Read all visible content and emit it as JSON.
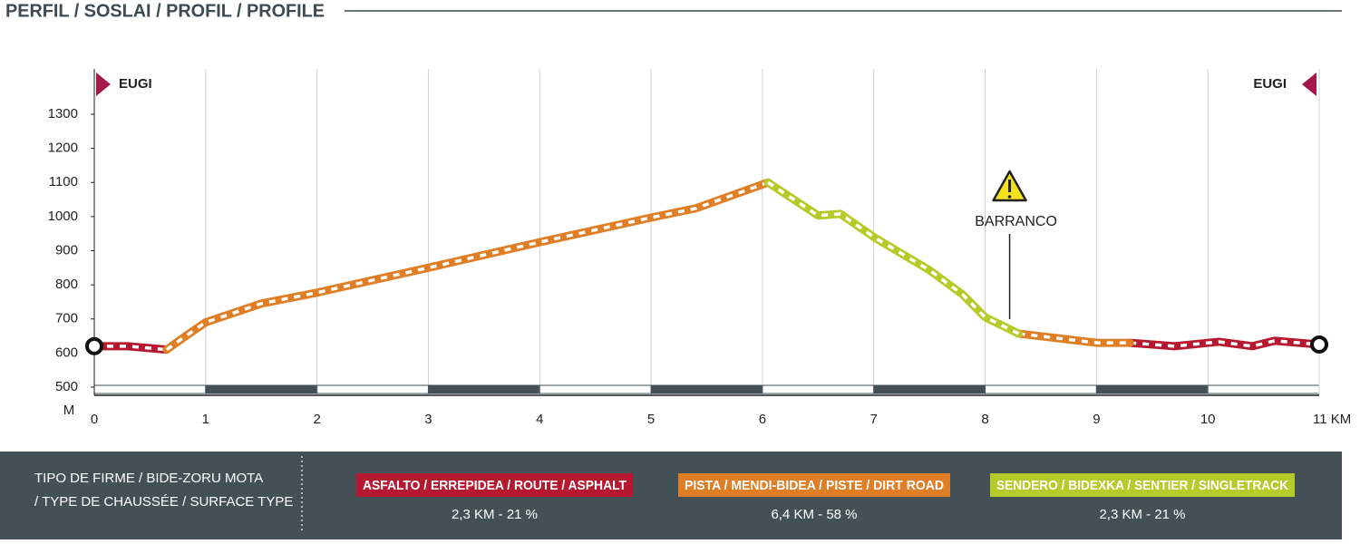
{
  "chart_data": {
    "type": "line",
    "title": "PERFIL / SOSLAI / PROFIL / PROFILE",
    "y_label": "M",
    "start_label": "EUGI",
    "end_label": "EUGI",
    "annotations": [
      {
        "text": "BARRANCO",
        "x": 8.22
      }
    ],
    "x": [
      0,
      0.3,
      0.65,
      0.8,
      1,
      1.5,
      2,
      3,
      4,
      5,
      5.4,
      6.05,
      6.5,
      6.7,
      7,
      7.5,
      7.8,
      8,
      8.3,
      9,
      9.3,
      9.7,
      10.1,
      10.4,
      10.6,
      11
    ],
    "series": [
      {
        "name": "ASFALTO / ERREPIDEA / ROUTE / ASPHALT",
        "stats": "2,3 KM - 21 %",
        "color": "#b5182f",
        "values": [
          620,
          620,
          610,
          null,
          null,
          null,
          null,
          null,
          null,
          null,
          null,
          null,
          null,
          null,
          null,
          null,
          null,
          null,
          null,
          null,
          630,
          620,
          633,
          620,
          636,
          625
        ]
      },
      {
        "name": "PISTA / MENDI-BIDEA / PISTE / DIRT ROAD",
        "stats": "6,4 KM - 58 %",
        "color": "#e07e26",
        "values": [
          null,
          null,
          610,
          645,
          690,
          745,
          777,
          850,
          925,
          997,
          1024,
          1100,
          null,
          null,
          null,
          null,
          null,
          null,
          657,
          630,
          630,
          null,
          null,
          null,
          null,
          null
        ]
      },
      {
        "name": "SENDERO  / BIDEXKA / SENTIER / SINGLETRACK",
        "stats": "2,3 KM - 21 %",
        "color": "#b5cb2a",
        "values": [
          null,
          null,
          null,
          null,
          null,
          null,
          null,
          null,
          null,
          null,
          null,
          1100,
          1003,
          1008,
          940,
          843,
          771,
          705,
          657,
          null,
          null,
          null,
          null,
          null,
          null,
          null
        ]
      }
    ],
    "legend_title": [
      "TIPO DE FIRME / BIDE-ZORU MOTA",
      "/ TYPE DE CHAUSSÉE / SURFACE TYPE"
    ],
    "xlim": [
      0,
      11
    ],
    "xticks": [
      0,
      1,
      2,
      3,
      4,
      5,
      6,
      7,
      8,
      9,
      10,
      {
        "value": 11,
        "label": "11 KM"
      }
    ],
    "ylim": [
      500,
      1300
    ],
    "yticks": [
      500,
      600,
      700,
      800,
      900,
      1000,
      1100,
      1200,
      1300
    ],
    "grid": true
  }
}
